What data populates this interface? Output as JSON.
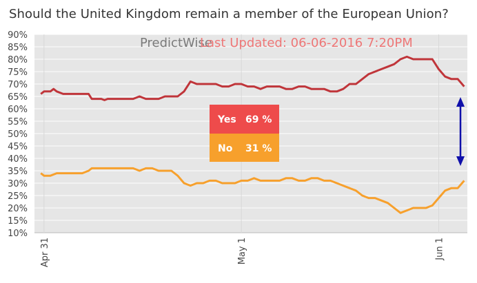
{
  "title": "Should the United Kingdom remain a member of the European Union?",
  "brand": "PredictWise",
  "last_updated": "Last Updated: 06-06-2016 7:20PM",
  "results": {
    "yes": {
      "label": "Yes",
      "value": "69 %",
      "color": "#ee4b4b"
    },
    "no": {
      "label": "No",
      "value": "31 %",
      "color": "#f7a02c"
    }
  },
  "colors": {
    "plot_bg": "#e6e6e6",
    "grid": "#ffffff",
    "arrow": "#1010aa"
  },
  "chart_data": {
    "type": "line",
    "title": "Should the United Kingdom remain a member of the European Union?",
    "xlabel": "",
    "ylabel": "",
    "ylim": [
      10,
      90
    ],
    "yticks": [
      "10%",
      "15%",
      "20%",
      "25%",
      "30%",
      "35%",
      "40%",
      "45%",
      "50%",
      "55%",
      "60%",
      "65%",
      "70%",
      "75%",
      "80%",
      "85%",
      "90%"
    ],
    "xticks": [
      {
        "label": "Apr 31",
        "day": 0
      },
      {
        "label": "May 1",
        "day": 31
      },
      {
        "label": "Jun 1",
        "day": 62
      }
    ],
    "xlim": [
      -1.5,
      66.5
    ],
    "series": [
      {
        "name": "Yes",
        "color": "#c0353a",
        "points": [
          [
            -0.5,
            66
          ],
          [
            0,
            67
          ],
          [
            1,
            67
          ],
          [
            1.5,
            68
          ],
          [
            2,
            67
          ],
          [
            3,
            66
          ],
          [
            4,
            66
          ],
          [
            5,
            66
          ],
          [
            6,
            66
          ],
          [
            7,
            66
          ],
          [
            7.5,
            64
          ],
          [
            8,
            64
          ],
          [
            9,
            64
          ],
          [
            9.5,
            63.5
          ],
          [
            10,
            64
          ],
          [
            11,
            64
          ],
          [
            12,
            64
          ],
          [
            13,
            64
          ],
          [
            14,
            64
          ],
          [
            15,
            65
          ],
          [
            16,
            64
          ],
          [
            17,
            64
          ],
          [
            18,
            64
          ],
          [
            19,
            65
          ],
          [
            20,
            65
          ],
          [
            21,
            65
          ],
          [
            22,
            67
          ],
          [
            23,
            71
          ],
          [
            24,
            70
          ],
          [
            25,
            70
          ],
          [
            26,
            70
          ],
          [
            27,
            70
          ],
          [
            28,
            69
          ],
          [
            29,
            69
          ],
          [
            30,
            70
          ],
          [
            31,
            70
          ],
          [
            32,
            69
          ],
          [
            33,
            69
          ],
          [
            34,
            68
          ],
          [
            35,
            69
          ],
          [
            36,
            69
          ],
          [
            37,
            69
          ],
          [
            38,
            68
          ],
          [
            39,
            68
          ],
          [
            40,
            69
          ],
          [
            41,
            69
          ],
          [
            42,
            68
          ],
          [
            43,
            68
          ],
          [
            44,
            68
          ],
          [
            45,
            67
          ],
          [
            46,
            67
          ],
          [
            47,
            68
          ],
          [
            48,
            70
          ],
          [
            49,
            70
          ],
          [
            50,
            72
          ],
          [
            51,
            74
          ],
          [
            52,
            75
          ],
          [
            53,
            76
          ],
          [
            54,
            77
          ],
          [
            55,
            78
          ],
          [
            56,
            80
          ],
          [
            57,
            81
          ],
          [
            58,
            80
          ],
          [
            59,
            80
          ],
          [
            60,
            80
          ],
          [
            61,
            80
          ],
          [
            62,
            76
          ],
          [
            63,
            73
          ],
          [
            64,
            72
          ],
          [
            65,
            72
          ],
          [
            66,
            69
          ]
        ]
      },
      {
        "name": "No",
        "color": "#f7a02c",
        "points": [
          [
            -0.5,
            34
          ],
          [
            0,
            33
          ],
          [
            1,
            33
          ],
          [
            2,
            34
          ],
          [
            3,
            34
          ],
          [
            4,
            34
          ],
          [
            5,
            34
          ],
          [
            6,
            34
          ],
          [
            7,
            35
          ],
          [
            7.5,
            36
          ],
          [
            8,
            36
          ],
          [
            9,
            36
          ],
          [
            10,
            36
          ],
          [
            11,
            36
          ],
          [
            12,
            36
          ],
          [
            13,
            36
          ],
          [
            14,
            36
          ],
          [
            15,
            35
          ],
          [
            16,
            36
          ],
          [
            17,
            36
          ],
          [
            18,
            35
          ],
          [
            19,
            35
          ],
          [
            20,
            35
          ],
          [
            21,
            33
          ],
          [
            22,
            30
          ],
          [
            23,
            29
          ],
          [
            24,
            30
          ],
          [
            25,
            30
          ],
          [
            26,
            31
          ],
          [
            27,
            31
          ],
          [
            28,
            30
          ],
          [
            29,
            30
          ],
          [
            30,
            30
          ],
          [
            31,
            31
          ],
          [
            32,
            31
          ],
          [
            33,
            32
          ],
          [
            34,
            31
          ],
          [
            35,
            31
          ],
          [
            36,
            31
          ],
          [
            37,
            31
          ],
          [
            38,
            32
          ],
          [
            39,
            32
          ],
          [
            40,
            31
          ],
          [
            41,
            31
          ],
          [
            42,
            32
          ],
          [
            43,
            32
          ],
          [
            44,
            31
          ],
          [
            45,
            31
          ],
          [
            46,
            30
          ],
          [
            47,
            29
          ],
          [
            48,
            28
          ],
          [
            49,
            27
          ],
          [
            50,
            25
          ],
          [
            51,
            24
          ],
          [
            52,
            24
          ],
          [
            53,
            23
          ],
          [
            54,
            22
          ],
          [
            55,
            20
          ],
          [
            56,
            18
          ],
          [
            57,
            19
          ],
          [
            58,
            20
          ],
          [
            59,
            20
          ],
          [
            60,
            20
          ],
          [
            61,
            21
          ],
          [
            62,
            24
          ],
          [
            63,
            27
          ],
          [
            64,
            28
          ],
          [
            65,
            28
          ],
          [
            66,
            31
          ]
        ]
      }
    ],
    "current": {
      "Yes": 69,
      "No": 31
    }
  }
}
